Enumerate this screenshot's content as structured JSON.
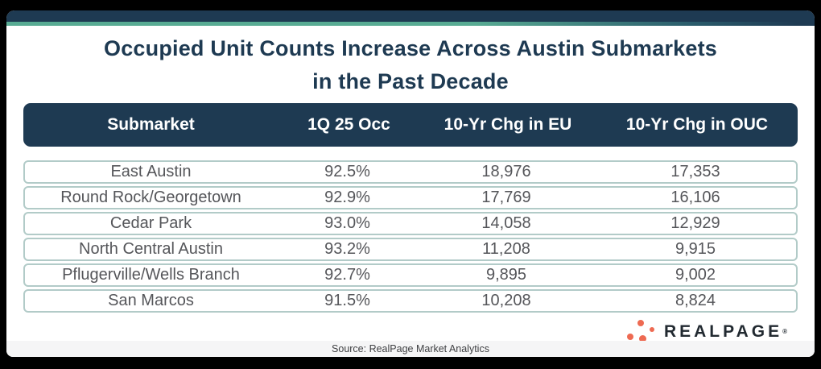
{
  "title": {
    "line1": "Occupied Unit Counts Increase Across Austin Submarkets",
    "line2": "in the Past Decade"
  },
  "chart_data": {
    "type": "table",
    "title": "Occupied Unit Counts Increase Across Austin Submarkets in the Past Decade",
    "columns": [
      "Submarket",
      "1Q 25 Occ",
      "10-Yr Chg in EU",
      "10-Yr Chg in OUC"
    ],
    "rows": [
      [
        "East Austin",
        "92.5%",
        "18,976",
        "17,353"
      ],
      [
        "Round Rock/Georgetown",
        "92.9%",
        "17,769",
        "16,106"
      ],
      [
        "Cedar Park",
        "93.0%",
        "14,058",
        "12,929"
      ],
      [
        "North Central Austin",
        "93.2%",
        "11,208",
        "9,915"
      ],
      [
        "Pflugerville/Wells Branch",
        "92.7%",
        "9,895",
        "9,002"
      ],
      [
        "San Marcos",
        "91.5%",
        "10,208",
        "8,824"
      ]
    ],
    "source": "Source: RealPage Market Analytics"
  },
  "footer": {
    "source": "Source: RealPage Market Analytics"
  },
  "logo": {
    "text": "REALPAGE",
    "trademark": "®",
    "icon": "realpage-dots-icon"
  },
  "colors": {
    "navy": "#1e3a52",
    "teal_accent": "#58ab93",
    "row_border": "#b2cbc8",
    "row_text": "#55565a",
    "logo_orange": "#ee6a52",
    "footer_bg": "#f5f5f6",
    "frame": "#000000"
  }
}
